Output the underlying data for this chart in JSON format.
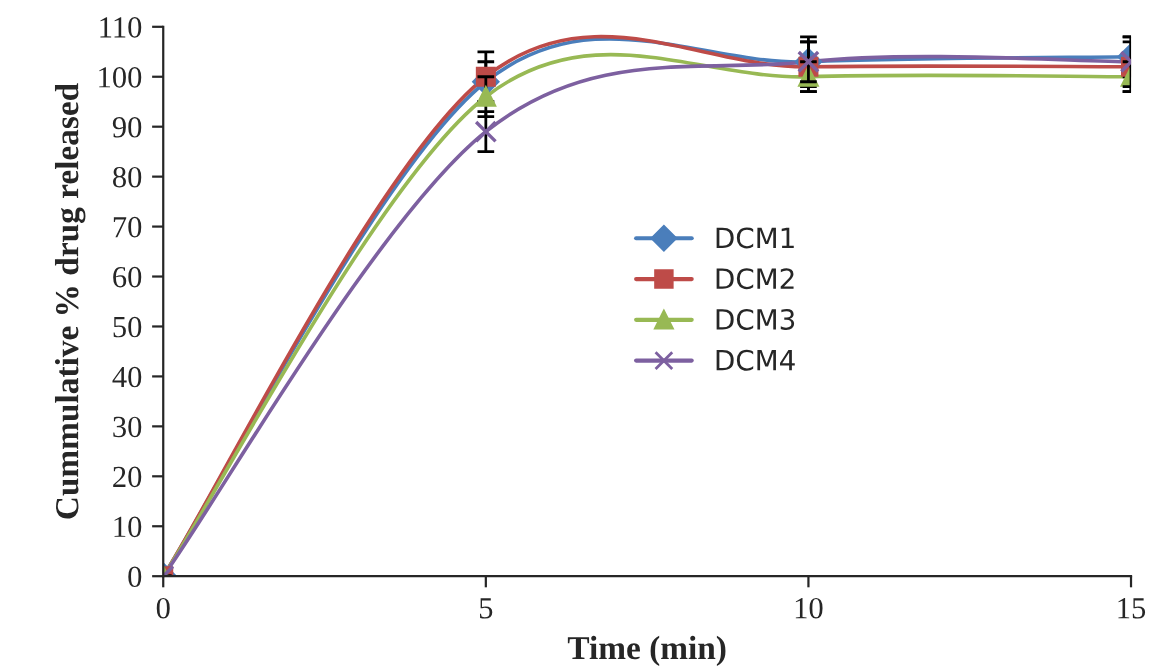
{
  "chart_data": {
    "type": "line",
    "xlabel": "Time (min)",
    "ylabel": "Cummulative % drug released",
    "x": [
      0,
      5,
      10,
      15
    ],
    "xlim": [
      0,
      15
    ],
    "xticks": [
      0,
      5,
      10,
      15
    ],
    "ylim": [
      0,
      110
    ],
    "yticks": [
      0,
      10,
      20,
      30,
      40,
      50,
      60,
      70,
      80,
      90,
      100,
      110
    ],
    "grid": false,
    "legend": "right",
    "series": [
      {
        "name": "DCM1",
        "color": "#4a7ebb",
        "marker": "diamond",
        "values": [
          0,
          99,
          103,
          104
        ],
        "errors": [
          0,
          4,
          5,
          4
        ]
      },
      {
        "name": "DCM2",
        "color": "#be4b48",
        "marker": "square",
        "values": [
          0,
          100,
          102,
          102
        ],
        "errors": [
          0,
          5,
          5,
          5
        ]
      },
      {
        "name": "DCM3",
        "color": "#98b954",
        "marker": "triangle",
        "values": [
          0,
          96,
          100,
          100
        ],
        "errors": [
          0,
          4,
          3,
          3
        ]
      },
      {
        "name": "DCM4",
        "color": "#7d60a0",
        "marker": "cross",
        "values": [
          0,
          89,
          103,
          103
        ],
        "errors": [
          0,
          4,
          4,
          5
        ]
      }
    ]
  }
}
